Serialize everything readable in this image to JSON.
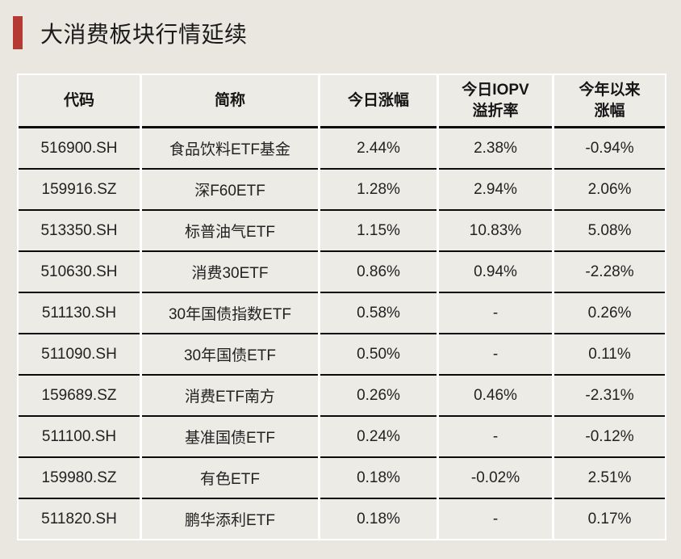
{
  "title": {
    "text": "大消费板块行情延续",
    "accent_color": "#B53A34"
  },
  "table": {
    "header_labels": [
      "代码",
      "简称",
      "今日涨幅",
      "今日IOPV\n溢折率",
      "今年以来\n涨幅"
    ]
  },
  "chart_data": {
    "type": "table",
    "title": "大消费板块行情延续",
    "columns": [
      "代码",
      "简称",
      "今日涨幅",
      "今日IOPV溢折率",
      "今年以来涨幅"
    ],
    "rows": [
      [
        "516900.SH",
        "食品饮料ETF基金",
        "2.44%",
        "2.38%",
        "-0.94%"
      ],
      [
        "159916.SZ",
        "深F60ETF",
        "1.28%",
        "2.94%",
        "2.06%"
      ],
      [
        "513350.SH",
        "标普油气ETF",
        "1.15%",
        "10.83%",
        "5.08%"
      ],
      [
        "510630.SH",
        "消费30ETF",
        "0.86%",
        "0.94%",
        "-2.28%"
      ],
      [
        "511130.SH",
        "30年国债指数ETF",
        "0.58%",
        "-",
        "0.26%"
      ],
      [
        "511090.SH",
        "30年国债ETF",
        "0.50%",
        "-",
        "0.11%"
      ],
      [
        "159689.SZ",
        "消费ETF南方",
        "0.26%",
        "0.46%",
        "-2.31%"
      ],
      [
        "511100.SH",
        "基准国债ETF",
        "0.24%",
        "-",
        "-0.12%"
      ],
      [
        "159980.SZ",
        "有色ETF",
        "0.18%",
        "-0.02%",
        "2.51%"
      ],
      [
        "511820.SH",
        "鹏华添利ETF",
        "0.18%",
        "-",
        "0.17%"
      ]
    ]
  }
}
